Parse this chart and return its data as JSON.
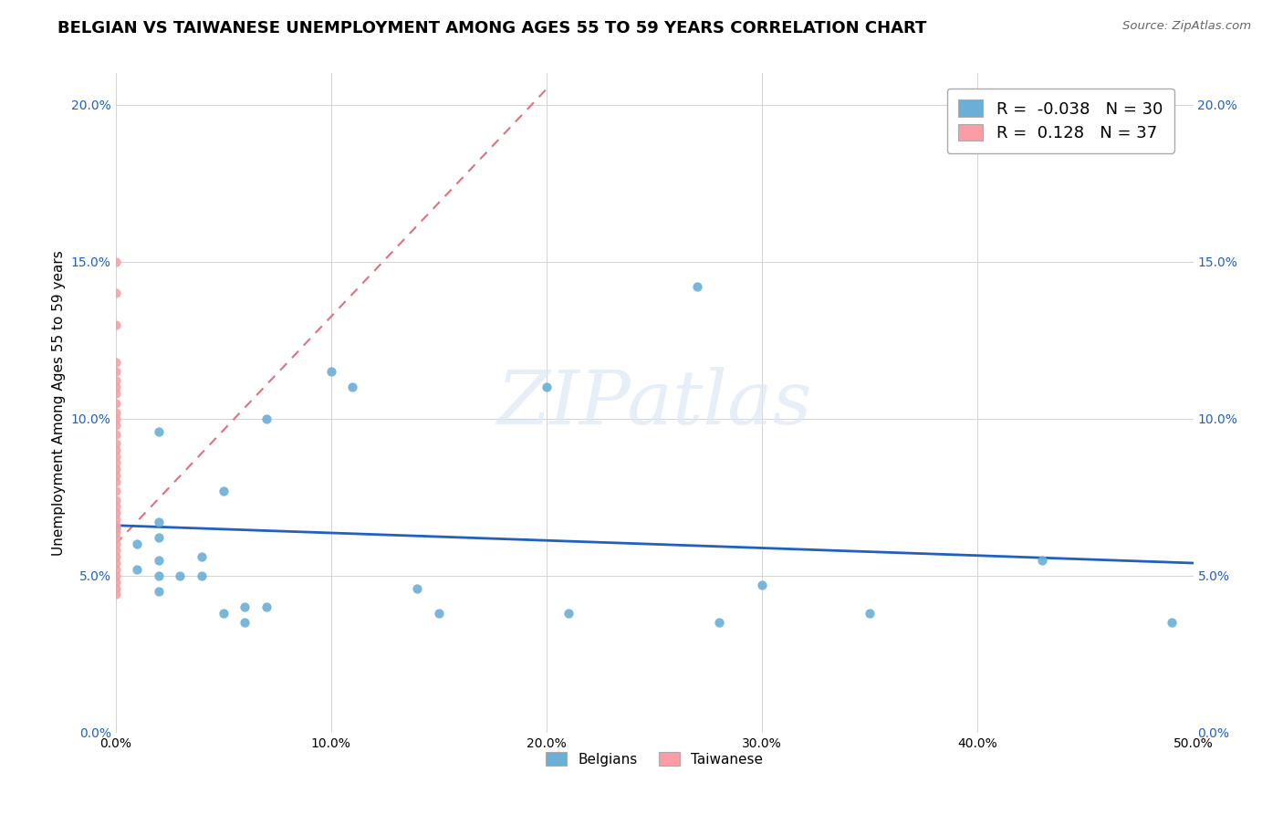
{
  "title": "BELGIAN VS TAIWANESE UNEMPLOYMENT AMONG AGES 55 TO 59 YEARS CORRELATION CHART",
  "source": "Source: ZipAtlas.com",
  "ylabel": "Unemployment Among Ages 55 to 59 years",
  "xlim": [
    0.0,
    0.5
  ],
  "ylim": [
    0.0,
    0.21
  ],
  "x_ticks": [
    0.0,
    0.1,
    0.2,
    0.3,
    0.4,
    0.5
  ],
  "x_tick_labels": [
    "0.0%",
    "10.0%",
    "20.0%",
    "30.0%",
    "40.0%",
    "50.0%"
  ],
  "y_ticks": [
    0.0,
    0.05,
    0.1,
    0.15,
    0.2
  ],
  "y_tick_labels": [
    "0.0%",
    "5.0%",
    "10.0%",
    "15.0%",
    "20.0%"
  ],
  "belgian_color": "#6baed6",
  "taiwanese_color": "#fc9ca4",
  "belgian_R": -0.038,
  "belgian_N": 30,
  "taiwanese_R": 0.128,
  "taiwanese_N": 37,
  "belgian_x": [
    0.0,
    0.01,
    0.01,
    0.02,
    0.02,
    0.02,
    0.02,
    0.02,
    0.02,
    0.03,
    0.04,
    0.04,
    0.05,
    0.05,
    0.06,
    0.06,
    0.07,
    0.07,
    0.1,
    0.11,
    0.14,
    0.15,
    0.2,
    0.21,
    0.27,
    0.28,
    0.3,
    0.35,
    0.43,
    0.49
  ],
  "belgian_y": [
    0.065,
    0.052,
    0.06,
    0.045,
    0.05,
    0.055,
    0.062,
    0.067,
    0.096,
    0.05,
    0.05,
    0.056,
    0.038,
    0.077,
    0.035,
    0.04,
    0.04,
    0.1,
    0.115,
    0.11,
    0.046,
    0.038,
    0.11,
    0.038,
    0.142,
    0.035,
    0.047,
    0.038,
    0.055,
    0.035
  ],
  "taiwanese_x": [
    0.0,
    0.0,
    0.0,
    0.0,
    0.0,
    0.0,
    0.0,
    0.0,
    0.0,
    0.0,
    0.0,
    0.0,
    0.0,
    0.0,
    0.0,
    0.0,
    0.0,
    0.0,
    0.0,
    0.0,
    0.0,
    0.0,
    0.0,
    0.0,
    0.0,
    0.0,
    0.0,
    0.0,
    0.0,
    0.0,
    0.0,
    0.0,
    0.0,
    0.0,
    0.0,
    0.0,
    0.0
  ],
  "taiwanese_y": [
    0.15,
    0.14,
    0.13,
    0.118,
    0.115,
    0.112,
    0.11,
    0.108,
    0.105,
    0.102,
    0.1,
    0.098,
    0.095,
    0.092,
    0.09,
    0.088,
    0.086,
    0.084,
    0.082,
    0.08,
    0.077,
    0.074,
    0.072,
    0.07,
    0.068,
    0.066,
    0.064,
    0.062,
    0.06,
    0.058,
    0.056,
    0.054,
    0.052,
    0.05,
    0.048,
    0.046,
    0.044
  ],
  "belgian_line_x": [
    0.0,
    0.5
  ],
  "belgian_line_y": [
    0.066,
    0.054
  ],
  "taiwanese_line_x": [
    0.0,
    0.2
  ],
  "taiwanese_line_y": [
    0.06,
    0.205
  ],
  "watermark_text": "ZIPatlas",
  "background_color": "#ffffff",
  "grid_color": "#cccccc",
  "title_fontsize": 13,
  "axis_label_fontsize": 11,
  "tick_fontsize": 10,
  "legend_fontsize": 13
}
